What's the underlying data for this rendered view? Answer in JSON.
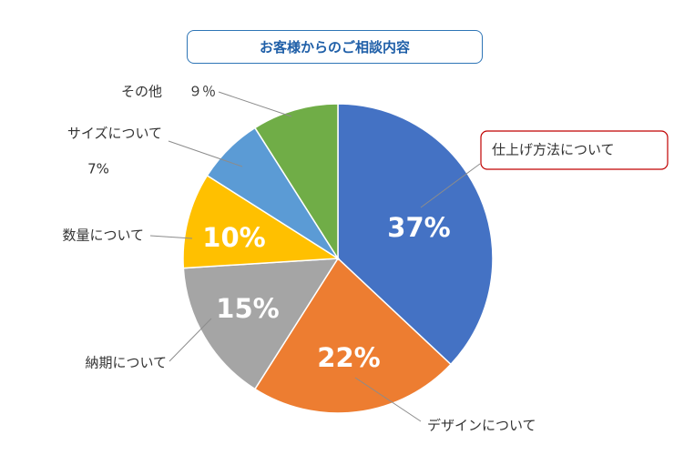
{
  "chart_data": {
    "type": "pie",
    "title": "お客様からのご相談内容",
    "categories": [
      "仕上げ方法について",
      "デザインについて",
      "納期について",
      "数量について",
      "サイズについて",
      "その他"
    ],
    "values": [
      37,
      22,
      15,
      10,
      7,
      9
    ],
    "data_labels": [
      "37%",
      "22%",
      "15%",
      "10%",
      "7%",
      "９％"
    ],
    "colors": [
      "#4472c4",
      "#ed7d31",
      "#a5a5a5",
      "#ffc000",
      "#5b9bd5",
      "#70ad47"
    ],
    "start_angle_deg": 0,
    "direction": "clockwise",
    "legend": "none"
  }
}
